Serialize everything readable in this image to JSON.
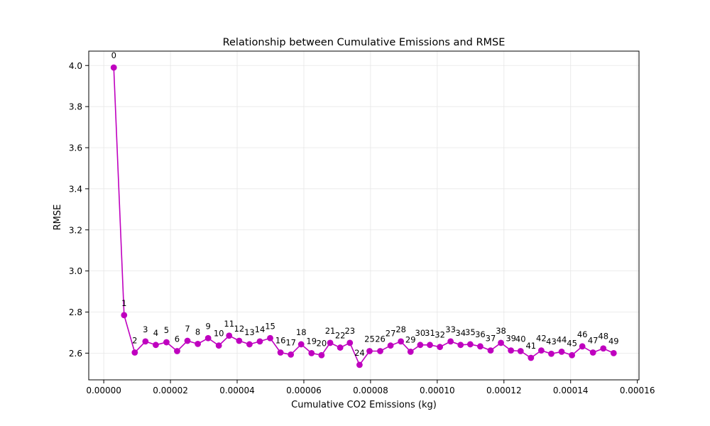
{
  "chart_data": {
    "type": "line",
    "title": "Relationship between Cumulative Emissions and RMSE",
    "xlabel": "Cumulative CO2 Emissions (kg)",
    "ylabel": "RMSE",
    "xlim": [
      -4.5e-06,
      0.0001605
    ],
    "ylim": [
      2.47,
      4.07
    ],
    "grid": true,
    "color": "#bf00bf",
    "marker": "circle",
    "xticks": [
      0.0,
      2e-05,
      4e-05,
      6e-05,
      8e-05,
      0.0001,
      0.00012,
      0.00014,
      0.00016
    ],
    "xtick_labels": [
      "0.00000",
      "0.00002",
      "0.00004",
      "0.00006",
      "0.00008",
      "0.00010",
      "0.00012",
      "0.00014",
      "0.00016"
    ],
    "yticks": [
      2.6,
      2.8,
      3.0,
      3.2,
      3.4,
      3.6,
      3.8,
      4.0
    ],
    "ytick_labels": [
      "2.6",
      "2.8",
      "3.0",
      "3.2",
      "3.4",
      "3.6",
      "3.8",
      "4.0"
    ],
    "points": [
      {
        "label": "0",
        "x": 3e-06,
        "y": 3.99
      },
      {
        "label": "1",
        "x": 6.1e-06,
        "y": 2.785
      },
      {
        "label": "2",
        "x": 9.3e-06,
        "y": 2.603
      },
      {
        "label": "3",
        "x": 1.25e-05,
        "y": 2.657
      },
      {
        "label": "4",
        "x": 1.56e-05,
        "y": 2.64
      },
      {
        "label": "5",
        "x": 1.88e-05,
        "y": 2.653
      },
      {
        "label": "6",
        "x": 2.2e-05,
        "y": 2.61
      },
      {
        "label": "7",
        "x": 2.51e-05,
        "y": 2.66
      },
      {
        "label": "8",
        "x": 2.82e-05,
        "y": 2.645
      },
      {
        "label": "9",
        "x": 3.13e-05,
        "y": 2.673
      },
      {
        "label": "10",
        "x": 3.45e-05,
        "y": 2.637
      },
      {
        "label": "11",
        "x": 3.76e-05,
        "y": 2.685
      },
      {
        "label": "12",
        "x": 4.06e-05,
        "y": 2.66
      },
      {
        "label": "13",
        "x": 4.37e-05,
        "y": 2.643
      },
      {
        "label": "14",
        "x": 4.68e-05,
        "y": 2.657
      },
      {
        "label": "15",
        "x": 4.99e-05,
        "y": 2.673
      },
      {
        "label": "16",
        "x": 5.3e-05,
        "y": 2.603
      },
      {
        "label": "17",
        "x": 5.61e-05,
        "y": 2.593
      },
      {
        "label": "18",
        "x": 5.92e-05,
        "y": 2.643
      },
      {
        "label": "19",
        "x": 6.23e-05,
        "y": 2.6
      },
      {
        "label": "20",
        "x": 6.53e-05,
        "y": 2.59
      },
      {
        "label": "21",
        "x": 6.79e-05,
        "y": 2.65
      },
      {
        "label": "22",
        "x": 7.09e-05,
        "y": 2.627
      },
      {
        "label": "23",
        "x": 7.38e-05,
        "y": 2.65
      },
      {
        "label": "24",
        "x": 7.67e-05,
        "y": 2.543
      },
      {
        "label": "25",
        "x": 7.97e-05,
        "y": 2.61
      },
      {
        "label": "26",
        "x": 8.29e-05,
        "y": 2.61
      },
      {
        "label": "27",
        "x": 8.6e-05,
        "y": 2.637
      },
      {
        "label": "28",
        "x": 8.91e-05,
        "y": 2.657
      },
      {
        "label": "29",
        "x": 9.2e-05,
        "y": 2.607
      },
      {
        "label": "30",
        "x": 9.49e-05,
        "y": 2.64
      },
      {
        "label": "31",
        "x": 9.78e-05,
        "y": 2.64
      },
      {
        "label": "32",
        "x": 0.0001008,
        "y": 2.63
      },
      {
        "label": "33",
        "x": 0.000104,
        "y": 2.657
      },
      {
        "label": "34",
        "x": 0.000107,
        "y": 2.64
      },
      {
        "label": "35",
        "x": 0.0001099,
        "y": 2.643
      },
      {
        "label": "36",
        "x": 0.0001129,
        "y": 2.633
      },
      {
        "label": "37",
        "x": 0.000116,
        "y": 2.613
      },
      {
        "label": "38",
        "x": 0.0001191,
        "y": 2.65
      },
      {
        "label": "39",
        "x": 0.0001221,
        "y": 2.613
      },
      {
        "label": "40",
        "x": 0.000125,
        "y": 2.61
      },
      {
        "label": "41",
        "x": 0.0001281,
        "y": 2.577
      },
      {
        "label": "42",
        "x": 0.0001312,
        "y": 2.613
      },
      {
        "label": "43",
        "x": 0.0001342,
        "y": 2.597
      },
      {
        "label": "44",
        "x": 0.0001373,
        "y": 2.607
      },
      {
        "label": "45",
        "x": 0.0001404,
        "y": 2.59
      },
      {
        "label": "46",
        "x": 0.0001435,
        "y": 2.633
      },
      {
        "label": "47",
        "x": 0.0001467,
        "y": 2.603
      },
      {
        "label": "48",
        "x": 0.0001498,
        "y": 2.623
      },
      {
        "label": "49",
        "x": 0.0001529,
        "y": 2.6
      }
    ]
  }
}
